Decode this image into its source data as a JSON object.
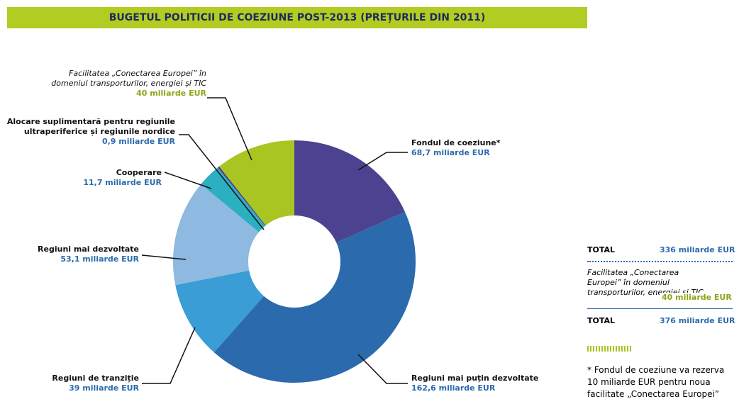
{
  "chart_data": {
    "type": "donut",
    "title": "BUGETUL POLITICII DE COEZIUNE POST-2013 (PREȚURILE DIN 2011)",
    "categories": [
      "Fondul de coeziune*",
      "Regiuni mai puțin dezvoltate",
      "Regiuni de tranziție",
      "Regiuni mai dezvoltate",
      "Cooperare",
      "Alocare suplimentară pentru regiunile ultraperiferice și regiunile nordice",
      "Facilitatea „Conectarea Europei” în domeniul transporturilor, energiei și TIC"
    ],
    "values": [
      68.7,
      162.6,
      39,
      53.1,
      11.7,
      0.9,
      40
    ],
    "value_labels": [
      "68,7 miliarde EUR",
      "162,6 miliarde EUR",
      "39 miliarde EUR",
      "53,1 miliarde EUR",
      "11,7 miliarde EUR",
      "0,9 miliarde EUR",
      "40 miliarde EUR"
    ],
    "colors": [
      "#4b438f",
      "#2b6aad",
      "#3a9dd6",
      "#8eb9e0",
      "#2bb0c2",
      "#5b3a8c",
      "#a9c522"
    ]
  },
  "summary": {
    "rows": [
      {
        "label": "TOTAL",
        "value": "336 miliarde EUR"
      },
      {
        "label": "Facilitatea „Conectarea Europei” în domeniul transporturilor, energiei și TIC",
        "value": "40 miliarde EUR"
      },
      {
        "label": "TOTAL",
        "value": "376 miliarde EUR"
      }
    ],
    "footnote": "* Fondul de coeziune va rezerva 10 miliarde EUR pentru noua facilitate „Conectarea Europei”"
  }
}
